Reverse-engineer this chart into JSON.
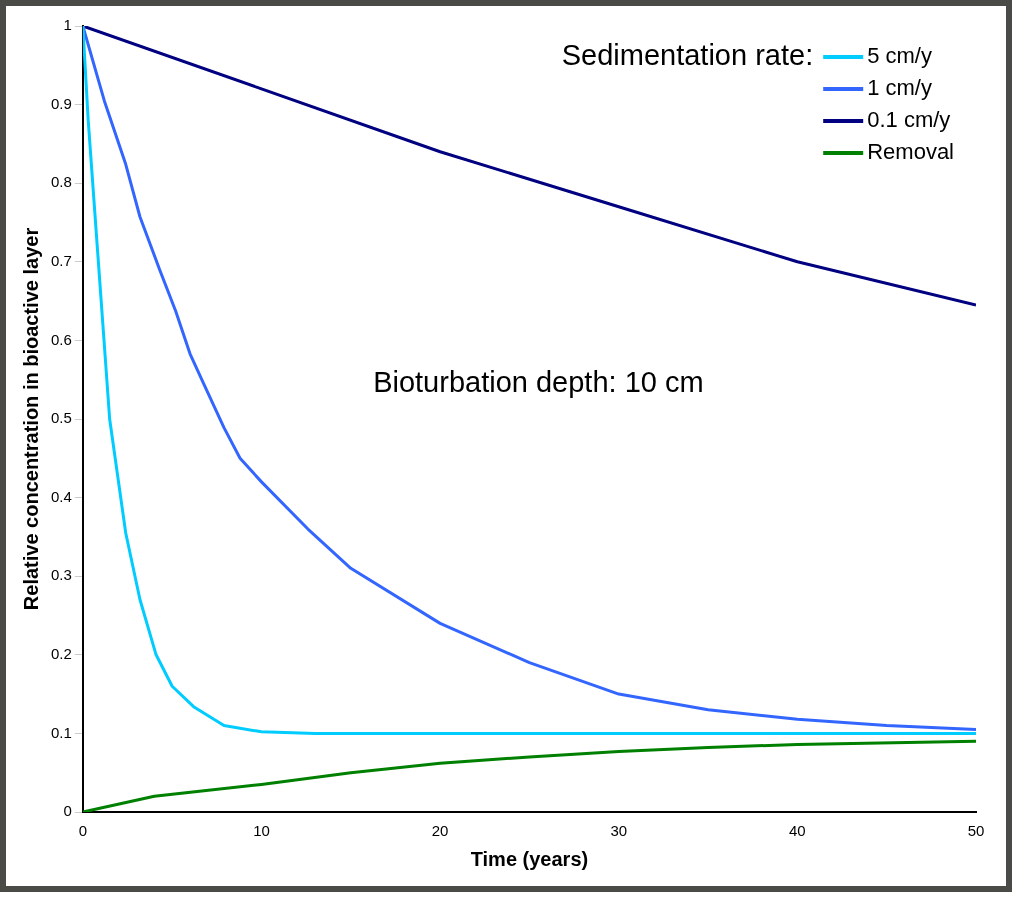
{
  "chart_data": {
    "type": "line",
    "xlabel": "Time (years)",
    "ylabel": "Relative concentration in bioactive layer",
    "legend_title": "Sedimentation rate:",
    "legend": "top right",
    "grid": false,
    "marker": "none",
    "line_style": "solid",
    "xlim": [
      0,
      50
    ],
    "xticks": [
      0,
      10,
      20,
      30,
      40,
      50
    ],
    "ylim": [
      0,
      1
    ],
    "yticks": [
      0,
      0.1,
      0.2,
      0.3,
      0.4,
      0.5,
      0.6,
      0.7,
      0.8,
      0.9,
      1
    ],
    "annotations": [
      "Bioturbation depth: 10 cm"
    ],
    "series": [
      {
        "name": "5 cm/y",
        "color": "#00ccff",
        "x": [
          0,
          0.3,
          0.9,
          1.5,
          2.4,
          3.2,
          4.1,
          5,
          6.2,
          7.9,
          10,
          13,
          20,
          30,
          40,
          50
        ],
        "values": [
          1,
          0.88,
          0.69,
          0.5,
          0.355,
          0.27,
          0.2,
          0.16,
          0.134,
          0.11,
          0.102,
          0.1,
          0.1,
          0.1,
          0.1,
          0.1
        ]
      },
      {
        "name": "1 cm/y",
        "color": "#3366ff",
        "x": [
          0,
          1.2,
          2.4,
          3.2,
          4.3,
          5.2,
          6,
          6.8,
          7.9,
          8.8,
          10,
          12.6,
          15,
          20,
          25,
          30,
          35,
          40,
          45,
          50
        ],
        "values": [
          1,
          0.905,
          0.824,
          0.757,
          0.69,
          0.637,
          0.583,
          0.543,
          0.489,
          0.45,
          0.42,
          0.36,
          0.31,
          0.24,
          0.19,
          0.15,
          0.13,
          0.118,
          0.11,
          0.105
        ]
      },
      {
        "name": "0.1 cm/y",
        "color": "#000080",
        "x": [
          0,
          10,
          20,
          30,
          40,
          50
        ],
        "values": [
          1,
          0.92,
          0.84,
          0.77,
          0.7,
          0.645
        ]
      },
      {
        "name": "Removal",
        "color": "#008000",
        "x": [
          0,
          4,
          10,
          15,
          20,
          25,
          30,
          35,
          40,
          50
        ],
        "values": [
          0,
          0.02,
          0.035,
          0.05,
          0.062,
          0.07,
          0.077,
          0.082,
          0.086,
          0.09
        ]
      }
    ]
  }
}
